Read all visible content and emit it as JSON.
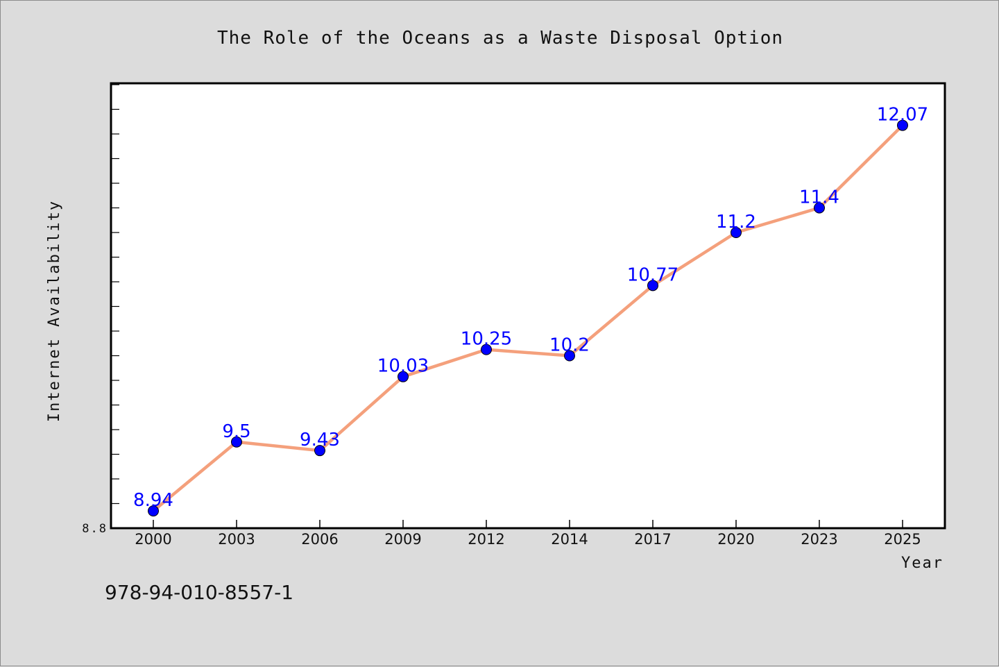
{
  "isbn": "978-94-010-8557-1",
  "colors": {
    "background": "#dcdcdc",
    "plot_background": "#ffffff",
    "line": "#f4a07c",
    "marker": "#0000ff",
    "data_label": "#0000ff"
  },
  "chart_data": {
    "type": "line",
    "title": "The Role of the Oceans as a Waste Disposal Option",
    "xlabel": "Year",
    "ylabel": "Internet Availability",
    "categories": [
      "2000",
      "2003",
      "2006",
      "2009",
      "2012",
      "2014",
      "2017",
      "2020",
      "2023",
      "2025"
    ],
    "series": [
      {
        "values": [
          8.94,
          9.5,
          9.43,
          10.03,
          10.25,
          10.2,
          10.77,
          11.2,
          11.4,
          12.07
        ],
        "labels": [
          "8.94",
          "9.5",
          "9.43",
          "10.03",
          "10.25",
          "10.2",
          "10.77",
          "11.2",
          "11.4",
          "12.07"
        ]
      }
    ],
    "ylim": [
      8.8,
      12.4
    ],
    "yticks_labeled": [
      "8.8"
    ],
    "minor_tick_step": 0.2,
    "grid": false,
    "legend": "none"
  }
}
